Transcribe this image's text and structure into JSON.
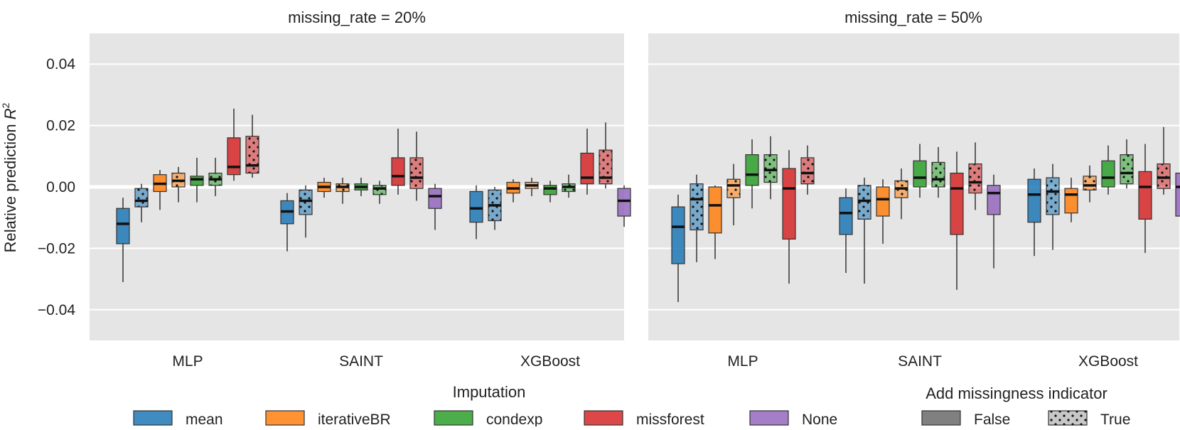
{
  "chart_data": {
    "type": "boxplot",
    "ylabel": "Relative prediction R²",
    "ylabel_main": "Relative prediction ",
    "ylabel_var": "R",
    "ylabel_sup": "2",
    "ylim": [
      -0.05,
      0.05
    ],
    "yticks": [
      {
        "v": -0.04,
        "label": "−0.04"
      },
      {
        "v": -0.02,
        "label": "−0.02"
      },
      {
        "v": 0.0,
        "label": "0.00"
      },
      {
        "v": 0.02,
        "label": "0.02"
      },
      {
        "v": 0.04,
        "label": "0.04"
      }
    ],
    "categories": [
      "MLP",
      "SAINT",
      "XGBoost"
    ],
    "colors": {
      "mean": "#1f77b4",
      "iterativeBR": "#ff7f0e",
      "condexp": "#2ca02c",
      "missforest": "#d62728",
      "None": "#9467bd"
    },
    "legend_imputation": {
      "title": "Imputation",
      "items": [
        {
          "key": "mean",
          "label": "mean"
        },
        {
          "key": "iterativeBR",
          "label": "iterativeBR"
        },
        {
          "key": "condexp",
          "label": "condexp"
        },
        {
          "key": "missforest",
          "label": "missforest"
        },
        {
          "key": "None",
          "label": "None"
        }
      ]
    },
    "legend_indicator": {
      "title": "Add missingness indicator",
      "items": [
        {
          "key": "False",
          "label": "False"
        },
        {
          "key": "True",
          "label": "True"
        }
      ]
    },
    "panels": [
      {
        "title": "missing_rate = 20%",
        "groups": [
          {
            "model": "MLP",
            "boxes": [
              {
                "imp": "mean",
                "ind": false,
                "wlo": -0.031,
                "q1": -0.0185,
                "med": -0.012,
                "q3": -0.007,
                "whi": -0.0035
              },
              {
                "imp": "mean",
                "ind": true,
                "wlo": -0.0115,
                "q1": -0.0065,
                "med": -0.0045,
                "q3": -0.0005,
                "whi": 0.001
              },
              {
                "imp": "iterativeBR",
                "ind": false,
                "wlo": -0.0075,
                "q1": -0.0015,
                "med": 0.001,
                "q3": 0.004,
                "whi": 0.0055
              },
              {
                "imp": "iterativeBR",
                "ind": true,
                "wlo": -0.005,
                "q1": 0.0,
                "med": 0.002,
                "q3": 0.0045,
                "whi": 0.0065
              },
              {
                "imp": "condexp",
                "ind": false,
                "wlo": -0.005,
                "q1": 0.0005,
                "med": 0.0025,
                "q3": 0.0035,
                "whi": 0.0095
              },
              {
                "imp": "condexp",
                "ind": true,
                "wlo": -0.003,
                "q1": 0.0005,
                "med": 0.0025,
                "q3": 0.0045,
                "whi": 0.0095
              },
              {
                "imp": "missforest",
                "ind": false,
                "wlo": 0.002,
                "q1": 0.004,
                "med": 0.0065,
                "q3": 0.016,
                "whi": 0.0255
              },
              {
                "imp": "missforest",
                "ind": true,
                "wlo": 0.003,
                "q1": 0.0045,
                "med": 0.007,
                "q3": 0.0165,
                "whi": 0.0235
              }
            ]
          },
          {
            "model": "SAINT",
            "boxes": [
              {
                "imp": "mean",
                "ind": false,
                "wlo": -0.021,
                "q1": -0.012,
                "med": -0.008,
                "q3": -0.0045,
                "whi": -0.002
              },
              {
                "imp": "mean",
                "ind": true,
                "wlo": -0.0165,
                "q1": -0.009,
                "med": -0.0045,
                "q3": -0.001,
                "whi": 0.0005
              },
              {
                "imp": "iterativeBR",
                "ind": false,
                "wlo": -0.0035,
                "q1": -0.0015,
                "med": 0.0,
                "q3": 0.0015,
                "whi": 0.003
              },
              {
                "imp": "iterativeBR",
                "ind": true,
                "wlo": -0.0055,
                "q1": -0.0015,
                "med": 0.0,
                "q3": 0.001,
                "whi": 0.003
              },
              {
                "imp": "condexp",
                "ind": false,
                "wlo": -0.003,
                "q1": -0.001,
                "med": 0.0,
                "q3": 0.001,
                "whi": 0.003
              },
              {
                "imp": "condexp",
                "ind": true,
                "wlo": -0.0055,
                "q1": -0.0025,
                "med": -0.0005,
                "q3": 0.0005,
                "whi": 0.002
              },
              {
                "imp": "missforest",
                "ind": false,
                "wlo": -0.0025,
                "q1": 0.0005,
                "med": 0.0035,
                "q3": 0.0095,
                "whi": 0.019
              },
              {
                "imp": "missforest",
                "ind": true,
                "wlo": -0.0045,
                "q1": -0.0005,
                "med": 0.003,
                "q3": 0.0095,
                "whi": 0.018
              },
              {
                "imp": "None",
                "ind": false,
                "wlo": -0.014,
                "q1": -0.007,
                "med": -0.003,
                "q3": -0.0005,
                "whi": 0.001
              }
            ]
          },
          {
            "model": "XGBoost",
            "boxes": [
              {
                "imp": "mean",
                "ind": false,
                "wlo": -0.017,
                "q1": -0.0115,
                "med": -0.007,
                "q3": -0.0015,
                "whi": 0.0005
              },
              {
                "imp": "mean",
                "ind": true,
                "wlo": -0.014,
                "q1": -0.011,
                "med": -0.006,
                "q3": -0.001,
                "whi": 0.0
              },
              {
                "imp": "iterativeBR",
                "ind": false,
                "wlo": -0.005,
                "q1": -0.002,
                "med": -0.0005,
                "q3": 0.0015,
                "whi": 0.0025
              },
              {
                "imp": "iterativeBR",
                "ind": true,
                "wlo": -0.003,
                "q1": -0.0005,
                "med": 0.0005,
                "q3": 0.0015,
                "whi": 0.003
              },
              {
                "imp": "condexp",
                "ind": false,
                "wlo": -0.005,
                "q1": -0.0025,
                "med": -0.0005,
                "q3": 0.0005,
                "whi": 0.002
              },
              {
                "imp": "condexp",
                "ind": true,
                "wlo": -0.0035,
                "q1": -0.0015,
                "med": 0.0,
                "q3": 0.001,
                "whi": 0.004
              },
              {
                "imp": "missforest",
                "ind": false,
                "wlo": -0.0025,
                "q1": 0.001,
                "med": 0.003,
                "q3": 0.011,
                "whi": 0.019
              },
              {
                "imp": "missforest",
                "ind": true,
                "wlo": -0.0005,
                "q1": 0.001,
                "med": 0.003,
                "q3": 0.012,
                "whi": 0.021
              },
              {
                "imp": "None",
                "ind": false,
                "wlo": -0.013,
                "q1": -0.0095,
                "med": -0.0045,
                "q3": -0.0005,
                "whi": 0.0005
              }
            ]
          }
        ]
      },
      {
        "title": "missing_rate = 50%",
        "groups": [
          {
            "model": "MLP",
            "boxes": [
              {
                "imp": "mean",
                "ind": false,
                "wlo": -0.0375,
                "q1": -0.025,
                "med": -0.013,
                "q3": -0.0065,
                "whi": -0.0025
              },
              {
                "imp": "mean",
                "ind": true,
                "wlo": -0.0245,
                "q1": -0.014,
                "med": -0.004,
                "q3": 0.001,
                "whi": 0.004
              },
              {
                "imp": "iterativeBR",
                "ind": false,
                "wlo": -0.0235,
                "q1": -0.015,
                "med": -0.006,
                "q3": 0.0,
                "whi": 0.0005
              },
              {
                "imp": "iterativeBR",
                "ind": true,
                "wlo": -0.0125,
                "q1": -0.0035,
                "med": 0.0005,
                "q3": 0.0025,
                "whi": 0.0075
              },
              {
                "imp": "condexp",
                "ind": false,
                "wlo": -0.007,
                "q1": 0.0005,
                "med": 0.004,
                "q3": 0.0105,
                "whi": 0.0155
              },
              {
                "imp": "condexp",
                "ind": true,
                "wlo": -0.004,
                "q1": 0.0015,
                "med": 0.0055,
                "q3": 0.0105,
                "whi": 0.0165
              },
              {
                "imp": "missforest",
                "ind": false,
                "wlo": -0.0315,
                "q1": -0.017,
                "med": -0.0005,
                "q3": 0.006,
                "whi": 0.012
              },
              {
                "imp": "missforest",
                "ind": true,
                "wlo": -0.0025,
                "q1": 0.001,
                "med": 0.0045,
                "q3": 0.0095,
                "whi": 0.0135
              }
            ]
          },
          {
            "model": "SAINT",
            "boxes": [
              {
                "imp": "mean",
                "ind": false,
                "wlo": -0.028,
                "q1": -0.0155,
                "med": -0.0085,
                "q3": -0.0035,
                "whi": -0.0005
              },
              {
                "imp": "mean",
                "ind": true,
                "wlo": -0.0315,
                "q1": -0.0105,
                "med": -0.0045,
                "q3": 0.0005,
                "whi": 0.003
              },
              {
                "imp": "iterativeBR",
                "ind": false,
                "wlo": -0.0185,
                "q1": -0.0095,
                "med": -0.004,
                "q3": 0.0,
                "whi": 0.0025
              },
              {
                "imp": "iterativeBR",
                "ind": true,
                "wlo": -0.0105,
                "q1": -0.0035,
                "med": -0.0005,
                "q3": 0.002,
                "whi": 0.006
              },
              {
                "imp": "condexp",
                "ind": false,
                "wlo": -0.0035,
                "q1": 0.0,
                "med": 0.003,
                "q3": 0.0085,
                "whi": 0.014
              },
              {
                "imp": "condexp",
                "ind": true,
                "wlo": -0.0035,
                "q1": 0.0,
                "med": 0.0025,
                "q3": 0.008,
                "whi": 0.013
              },
              {
                "imp": "missforest",
                "ind": false,
                "wlo": -0.0335,
                "q1": -0.0155,
                "med": -0.0005,
                "q3": 0.0045,
                "whi": 0.0115
              },
              {
                "imp": "missforest",
                "ind": true,
                "wlo": -0.0075,
                "q1": -0.002,
                "med": 0.0015,
                "q3": 0.0075,
                "whi": 0.0145
              },
              {
                "imp": "None",
                "ind": false,
                "wlo": -0.0265,
                "q1": -0.009,
                "med": -0.002,
                "q3": 0.0005,
                "whi": 0.004
              }
            ]
          },
          {
            "model": "XGBoost",
            "boxes": [
              {
                "imp": "mean",
                "ind": false,
                "wlo": -0.0225,
                "q1": -0.0115,
                "med": -0.0025,
                "q3": 0.0025,
                "whi": 0.006
              },
              {
                "imp": "mean",
                "ind": true,
                "wlo": -0.0205,
                "q1": -0.009,
                "med": -0.0015,
                "q3": 0.003,
                "whi": 0.0075
              },
              {
                "imp": "iterativeBR",
                "ind": false,
                "wlo": -0.0115,
                "q1": -0.0085,
                "med": -0.0025,
                "q3": -0.0005,
                "whi": 0.003
              },
              {
                "imp": "iterativeBR",
                "ind": true,
                "wlo": -0.005,
                "q1": -0.001,
                "med": 0.0005,
                "q3": 0.0035,
                "whi": 0.007
              },
              {
                "imp": "condexp",
                "ind": false,
                "wlo": -0.0025,
                "q1": 0.0,
                "med": 0.003,
                "q3": 0.0085,
                "whi": 0.0135
              },
              {
                "imp": "condexp",
                "ind": true,
                "wlo": -0.0005,
                "q1": 0.001,
                "med": 0.0045,
                "q3": 0.0105,
                "whi": 0.0155
              },
              {
                "imp": "missforest",
                "ind": false,
                "wlo": -0.0215,
                "q1": -0.0105,
                "med": 0.0,
                "q3": 0.005,
                "whi": 0.014
              },
              {
                "imp": "missforest",
                "ind": true,
                "wlo": -0.0025,
                "q1": -0.0005,
                "med": 0.003,
                "q3": 0.0075,
                "whi": 0.0195
              },
              {
                "imp": "None",
                "ind": false,
                "wlo": -0.021,
                "q1": -0.0095,
                "med": 0.0,
                "q3": 0.0045,
                "whi": 0.0105
              }
            ]
          }
        ]
      }
    ]
  }
}
